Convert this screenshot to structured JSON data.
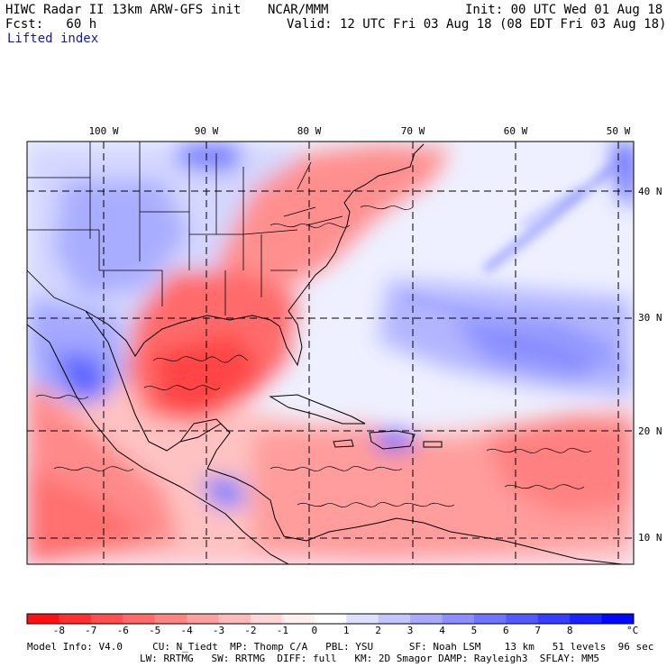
{
  "header": {
    "left_line1": "HIWC Radar II 13km ARW-GFS init",
    "org": "NCAR/MMM",
    "right_line1": "Init: 00 UTC Wed 01 Aug 18",
    "left_line2": "Fcst:   60 h",
    "right_line2": "Valid: 12 UTC Fri 03 Aug 18 (08 EDT Fri 03 Aug 18)",
    "field": "Lifted index"
  },
  "map": {
    "longitude_labels": [
      "100 W",
      "90 W",
      "80 W",
      "70 W",
      "60 W",
      "50 W"
    ],
    "latitude_labels": [
      "40 N",
      "30 N",
      "20 N",
      "10 N"
    ]
  },
  "colorbar": {
    "labels": [
      "-8",
      "-7",
      "-6",
      "-5",
      "-4",
      "-3",
      "-2",
      "-1",
      "0",
      "1",
      "2",
      "3",
      "4",
      "5",
      "6",
      "7",
      "8"
    ],
    "unit": "°C",
    "colors": [
      "#ff1010",
      "#ff3030",
      "#ff5050",
      "#ff6a6a",
      "#ff8585",
      "#ff9f9f",
      "#ffbaba",
      "#ffd5d5",
      "#fff0f0",
      "#ffffff",
      "#dfe0ff",
      "#c3c5ff",
      "#a7aaff",
      "#8b8fff",
      "#6f74ff",
      "#5359ff",
      "#373eff",
      "#1b23ff",
      "#0008ff"
    ]
  },
  "footer": {
    "line1": "Model Info: V4.0     CU: N_Tiedt  MP: Thomp C/A   PBL: YSU      SF: Noah LSM    13 km   51 levels  96 sec",
    "line2": "LW: RRTMG   SW: RRTMG  DIFF: full   KM: 2D Smagor DAMP: Rayleigh3  SFLAY: MM5"
  }
}
